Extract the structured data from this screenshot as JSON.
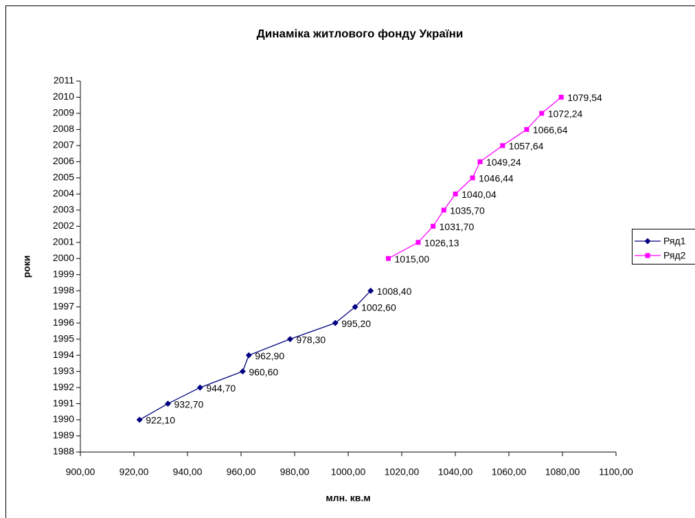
{
  "chart_data": {
    "type": "line",
    "title": "Динаміка житлового фонду України",
    "x_label": "млн. кв.м",
    "y_label": "роки",
    "xlim": [
      900,
      1100
    ],
    "xticks": [
      {
        "value": 900,
        "label": "900,00"
      },
      {
        "value": 920,
        "label": "920,00"
      },
      {
        "value": 940,
        "label": "940,00"
      },
      {
        "value": 960,
        "label": "960,00"
      },
      {
        "value": 980,
        "label": "980,00"
      },
      {
        "value": 1000,
        "label": "1000,00"
      },
      {
        "value": 1020,
        "label": "1020,00"
      },
      {
        "value": 1040,
        "label": "1040,00"
      },
      {
        "value": 1060,
        "label": "1060,00"
      },
      {
        "value": 1080,
        "label": "1080,00"
      },
      {
        "value": 1100,
        "label": "1100,00"
      }
    ],
    "ylim": [
      1988,
      2011
    ],
    "yticks": [
      1988,
      1989,
      1990,
      1991,
      1992,
      1993,
      1994,
      1995,
      1996,
      1997,
      1998,
      1999,
      2000,
      2001,
      2002,
      2003,
      2004,
      2005,
      2006,
      2007,
      2008,
      2009,
      2010,
      2011
    ],
    "grid": false,
    "legend": "right",
    "series": [
      {
        "name": "Ряд1",
        "color": "#000080",
        "marker": "diamond",
        "x": [
          922.1,
          932.7,
          944.7,
          960.6,
          962.9,
          978.3,
          995.2,
          1002.6,
          1008.4
        ],
        "x_labels": [
          "922,10",
          "932,70",
          "944,70",
          "960,60",
          "962,90",
          "978,30",
          "995,20",
          "1002,60",
          "1008,40"
        ],
        "values": [
          1990,
          1991,
          1992,
          1993,
          1994,
          1995,
          1996,
          1997,
          1998
        ]
      },
      {
        "name": "Ряд2",
        "color": "#ff00ff",
        "marker": "square",
        "x": [
          1015.0,
          1026.13,
          1031.7,
          1035.7,
          1040.04,
          1046.44,
          1049.24,
          1057.64,
          1066.64,
          1072.24,
          1079.54
        ],
        "x_labels": [
          "1015,00",
          "1026,13",
          "1031,70",
          "1035,70",
          "1040,04",
          "1046,44",
          "1049,24",
          "1057,64",
          "1066,64",
          "1072,24",
          "1079,54"
        ],
        "values": [
          2000,
          2001,
          2002,
          2003,
          2004,
          2005,
          2006,
          2007,
          2008,
          2009,
          2010
        ]
      }
    ]
  }
}
